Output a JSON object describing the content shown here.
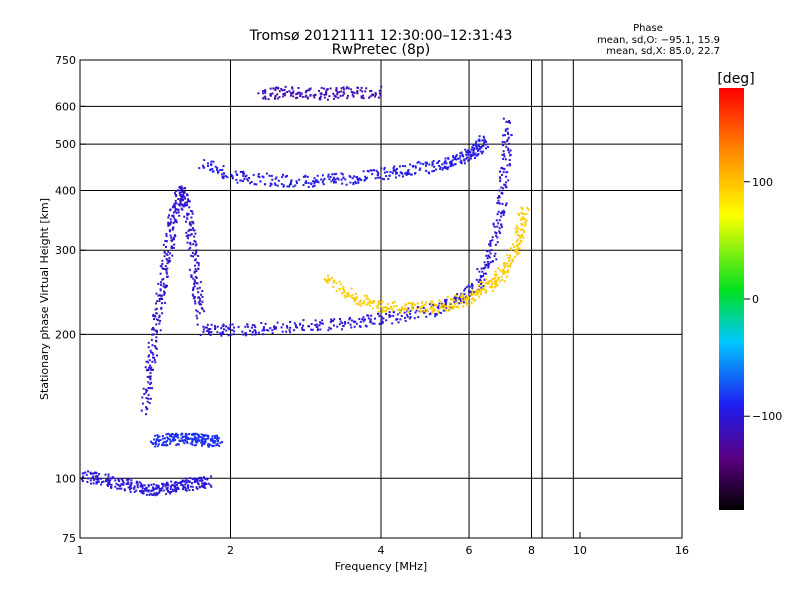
{
  "chart_data": {
    "type": "scatter",
    "title": "Tromsø 20121111 12:30:00–12:31:43",
    "subtitle": "RwPretec (8p)",
    "xlabel": "Frequency [MHz]",
    "ylabel": "Stationary phase Virtual Height [km]",
    "xscale": "log",
    "yscale": "log",
    "xlim": [
      1,
      16
    ],
    "ylim": [
      75,
      750
    ],
    "xticks": [
      1,
      2,
      4,
      6,
      8,
      10,
      16
    ],
    "xtick_labels": [
      "1",
      "2",
      "4",
      "6",
      "8",
      "10",
      "16"
    ],
    "yticks": [
      75,
      100,
      200,
      300,
      400,
      500,
      600,
      750
    ],
    "ytick_labels": [
      "75",
      "100",
      "200",
      "300",
      "400",
      "500",
      "600",
      "750"
    ],
    "vertical_gridlines": [
      2,
      4,
      6,
      8,
      8.4,
      9.7
    ],
    "horizontal_gridlines": [
      100,
      200,
      300,
      400,
      500,
      600
    ],
    "grid": true,
    "stats": {
      "heading": "Phase",
      "line_o": "mean, sd,O: −95.1, 15.9",
      "line_x": "mean, sd,X:  85.0, 22.7"
    },
    "colorbar": {
      "label": "[deg]",
      "range": [
        -180,
        180
      ],
      "ticks": [
        100,
        0,
        -100
      ],
      "tick_labels": [
        "100",
        "0",
        "−100"
      ],
      "placement": "right"
    },
    "traces": [
      {
        "x": [
          1.34,
          1.38,
          1.42,
          1.46,
          1.5,
          1.54,
          1.58,
          1.62,
          1.66,
          1.7,
          1.74
        ],
        "y": [
          140,
          175,
          215,
          260,
          310,
          360,
          400,
          380,
          320,
          260,
          220
        ],
        "phase": -105
      },
      {
        "x": [
          1.74,
          2.0,
          2.4,
          3.0,
          3.6,
          4.2,
          5.0,
          5.6,
          6.2,
          6.6,
          6.9,
          7.05,
          7.15
        ],
        "y": [
          205,
          205,
          207,
          210,
          213,
          218,
          225,
          235,
          255,
          290,
          360,
          450,
          560
        ],
        "phase": -100
      },
      {
        "x": [
          3.1,
          3.5,
          4.0,
          4.6,
          5.2,
          5.8,
          6.3,
          6.8,
          7.2,
          7.5,
          7.7
        ],
        "y": [
          265,
          240,
          230,
          228,
          230,
          237,
          248,
          262,
          285,
          320,
          370
        ],
        "phase": 95
      },
      {
        "x": [
          1.75,
          2.0,
          2.4,
          2.9,
          3.4,
          4.0,
          4.6,
          5.3,
          5.8,
          6.2,
          6.4
        ],
        "y": [
          460,
          430,
          422,
          420,
          425,
          435,
          445,
          455,
          470,
          490,
          510
        ],
        "phase": -95
      },
      {
        "x": [
          1.0,
          1.1,
          1.2,
          1.3,
          1.4,
          1.5,
          1.6,
          1.7,
          1.8
        ],
        "y": [
          102,
          100,
          98,
          96,
          95,
          96,
          97,
          98,
          99
        ],
        "phase": -100
      },
      {
        "x": [
          1.4,
          1.5,
          1.6,
          1.7,
          1.8,
          1.9
        ],
        "y": [
          120,
          121,
          122,
          121,
          120,
          120
        ],
        "phase": -85
      },
      {
        "x": [
          2.3,
          2.6,
          3.0,
          3.4,
          4.0
        ],
        "y": [
          640,
          645,
          640,
          642,
          645
        ],
        "phase": -115
      }
    ]
  }
}
